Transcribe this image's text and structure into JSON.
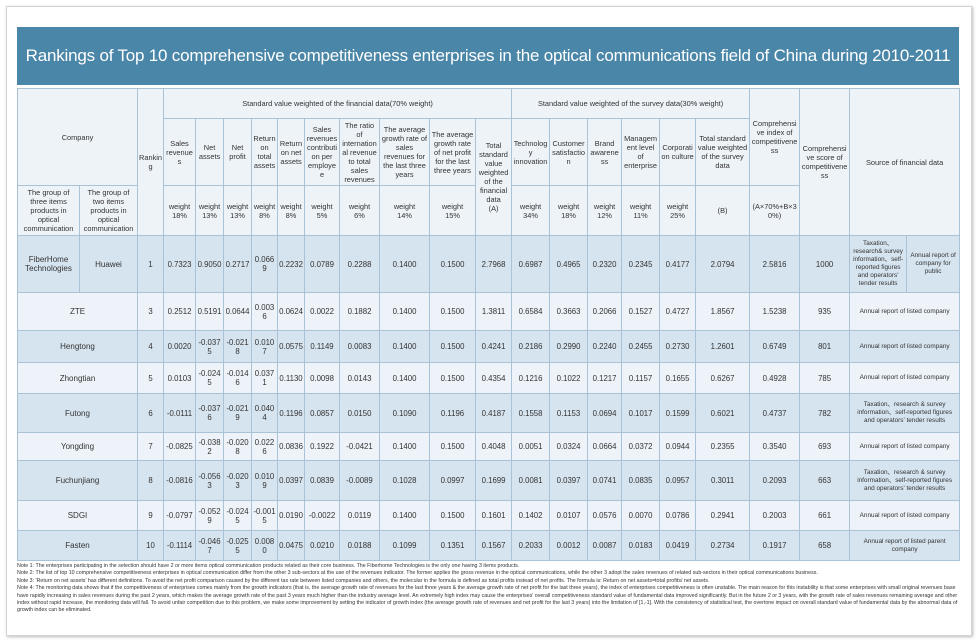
{
  "title": "Rankings of Top 10 comprehensive competitiveness enterprises in the optical communications field of China during 2010-2011",
  "header": {
    "company": "Company",
    "company_groups": [
      "The group of three items products in optical communication",
      "The group of two items products in optical communication"
    ],
    "ranking": "Ranking",
    "financial_group": "Standard value weighted of the financial data(70% weight)",
    "financial_columns": [
      {
        "name": "Sales revenues",
        "weight": "18%"
      },
      {
        "name": "Net assets",
        "weight": "13%"
      },
      {
        "name": "Net profit",
        "weight": "13%"
      },
      {
        "name": "Return on total assets",
        "weight": "8%"
      },
      {
        "name": "Return on net assets",
        "weight": "8%"
      },
      {
        "name": "Sales revenues contribution per employee",
        "weight": "5%"
      },
      {
        "name": "The ratio of international revenue to total sales revenues",
        "weight": "6%"
      },
      {
        "name": "The average growth rate of sales revenues for the last three years",
        "weight": "14%"
      },
      {
        "name": "The average growth rate of net profit for the last three years",
        "weight": "15%"
      }
    ],
    "financial_total": "Total standard value weighted of the financial data",
    "financial_total_symbol": "(A)",
    "survey_group": "Standard value weighted of the survey data(30% weight)",
    "survey_columns": [
      {
        "name": "Technology innovation",
        "weight": "34%"
      },
      {
        "name": "Customer satisfaction",
        "weight": "18%"
      },
      {
        "name": "Brand awareness",
        "weight": "12%"
      },
      {
        "name": "Management level of enterprise",
        "weight": "11%"
      },
      {
        "name": "Corporation culture",
        "weight": "25%"
      }
    ],
    "survey_total": "Total standard value weighted of the survey data",
    "survey_total_symbol": "(B)",
    "index": "Comprehensive index of competitiveness",
    "index_formula": "(A×70%+B×30%)",
    "score": "Comprehensive score of competitiveness",
    "source": "Source of financial data",
    "weight_label": "weight"
  },
  "rows": [
    {
      "company": [
        "FiberHome Technologies",
        "Huawei"
      ],
      "ranking": "1",
      "financial": [
        "0.7323",
        "0.9050",
        "0.2717",
        "0.0669",
        "0.2232",
        "0.0789",
        "0.2288",
        "0.1400",
        "0.1500",
        "2.7968"
      ],
      "survey": [
        "0.6987",
        "0.4965",
        "0.2320",
        "0.2345",
        "0.4177",
        "2.0794"
      ],
      "index": "2.5816",
      "score": "1000",
      "source": [
        "Taxation、research& survey information、self-reported figures and operators' tender results",
        "Annual report of company for public"
      ]
    },
    {
      "company": [
        "ZTE"
      ],
      "ranking": "3",
      "financial": [
        "0.2512",
        "0.5191",
        "0.0644",
        "0.0036",
        "0.0624",
        "0.0022",
        "0.1882",
        "0.1400",
        "0.1500",
        "1.3811"
      ],
      "survey": [
        "0.6584",
        "0.3663",
        "0.2066",
        "0.1527",
        "0.4727",
        "1.8567"
      ],
      "index": "1.5238",
      "score": "935",
      "source": [
        "Annual report of listed company"
      ]
    },
    {
      "company": [
        "Hengtong"
      ],
      "ranking": "4",
      "financial": [
        "0.0020",
        "-0.0375",
        "-0.0218",
        "0.0107",
        "0.0575",
        "0.1149",
        "0.0083",
        "0.1400",
        "0.1500",
        "0.4241"
      ],
      "survey": [
        "0.2186",
        "0.2990",
        "0.2240",
        "0.2455",
        "0.2730",
        "1.2601"
      ],
      "index": "0.6749",
      "score": "801",
      "source": [
        "Annual report of listed company"
      ]
    },
    {
      "company": [
        "Zhongtian"
      ],
      "ranking": "5",
      "financial": [
        "0.0103",
        "-0.0245",
        "-0.0146",
        "0.0371",
        "0.1130",
        "0.0098",
        "0.0143",
        "0.1400",
        "0.1500",
        "0.4354"
      ],
      "survey": [
        "0.1216",
        "0.1022",
        "0.1217",
        "0.1157",
        "0.1655",
        "0.6267"
      ],
      "index": "0.4928",
      "score": "785",
      "source": [
        "Annual report of listed company"
      ]
    },
    {
      "company": [
        "Futong"
      ],
      "ranking": "6",
      "financial": [
        "-0.0111",
        "-0.0376",
        "-0.0219",
        "0.0404",
        "0.1196",
        "0.0857",
        "0.0150",
        "0.1090",
        "0.1196",
        "0.4187"
      ],
      "survey": [
        "0.1558",
        "0.1153",
        "0.0694",
        "0.1017",
        "0.1599",
        "0.6021"
      ],
      "index": "0.4737",
      "score": "782",
      "source": [
        "Taxation、research & survey information、self-reported figures and operators' tender results"
      ]
    },
    {
      "company": [
        "Yongding"
      ],
      "ranking": "7",
      "financial": [
        "-0.0825",
        "-0.0382",
        "-0.0208",
        "0.0226",
        "0.0836",
        "0.1922",
        "-0.0421",
        "0.1400",
        "0.1500",
        "0.4048"
      ],
      "survey": [
        "0.0051",
        "0.0324",
        "0.0664",
        "0.0372",
        "0.0944",
        "0.2355"
      ],
      "index": "0.3540",
      "score": "693",
      "source": [
        "Annual report of listed company"
      ]
    },
    {
      "company": [
        "Fuchunjiang"
      ],
      "ranking": "8",
      "financial": [
        "-0.0816",
        "-0.0563",
        "-0.0203",
        "0.0109",
        "0.0397",
        "0.0839",
        "-0.0089",
        "0.1028",
        "0.0997",
        "0.1699"
      ],
      "survey": [
        "0.0081",
        "0.0397",
        "0.0741",
        "0.0835",
        "0.0957",
        "0.3011"
      ],
      "index": "0.2093",
      "score": "663",
      "source": [
        "Taxation、research & survey information、self-reported figures and operators' tender results"
      ]
    },
    {
      "company": [
        "SDGI"
      ],
      "ranking": "9",
      "financial": [
        "-0.0797",
        "-0.0529",
        "-0.0245",
        "-0.0015",
        "0.0190",
        "-0.0022",
        "0.0119",
        "0.1400",
        "0.1500",
        "0.1601"
      ],
      "survey": [
        "0.1402",
        "0.0107",
        "0.0576",
        "0.0070",
        "0.0786",
        "0.2941"
      ],
      "index": "0.2003",
      "score": "661",
      "source": [
        "Annual report of listed company"
      ]
    },
    {
      "company": [
        "Fasten"
      ],
      "ranking": "10",
      "financial": [
        "-0.1114",
        "-0.0467",
        "-0.0255",
        "0.0080",
        "0.0475",
        "0.0210",
        "0.0188",
        "0.1099",
        "0.1351",
        "0.1567"
      ],
      "survey": [
        "0.2033",
        "0.0012",
        "0.0087",
        "0.0183",
        "0.0419",
        "0.2734"
      ],
      "index": "0.1917",
      "score": "658",
      "source": [
        "Annual report of listed parent company"
      ]
    }
  ],
  "notes": [
    "Note 1: The enterprises participating in the selection should have 2 or more items optical communication products related as their core business. The Fiberhome Technologies is the only one having 3 items products.",
    "Note 2: The list of top 10 comprehensive competitiveness enterprises in optical communication differ from the other 3 sub-sectors at the use of the revenues indicator. The former applies the gross revenue in the optical communications, while the other 3 adopt the sales revenues of related sub-sectors in their optical communications business.",
    "Note 3: 'Return on net assets' has different definitions. To avoid the net profit comparison caused by the different tax rate between listed companies and others, the molecular in the formula is defined as total profits instead of net profits. The formula is: Return on net assets=total profits/ net assets.",
    "Note 4: The monitoring data shows that if the competitiveness of enterprises comes mainly from the growth indicators (that is, the average growth rate of revenues for the last three years & the average growth rate of net profit for the last three years), the index of enterprises competitiveness is often unstable. The main reason for this instability is that some enterprises with small original revenues base have rapidly increasing in sales revenues during the past 2 years, which makes the average growth rate of the past 3 years much higher than the industry average level. An extremely high index may cause the enterprises' overall competitiveness standard value of fundamental data improved significantly. But in the future 2 or 3 years, with the growth rate of sales revenues remaining average and other index without rapid increase, the monitoring data will fall. To avoid unfair competition due to this problem, we make some improvement by setting the indicator of growth index (the average growth rate of revenues and net profit for the last 3 years) into the limitation of [1,-1]. With the consistency of statistical test, the overtone impact on overall standard value of fundamental data by the abnormal data of growth index can be eliminated."
  ]
}
